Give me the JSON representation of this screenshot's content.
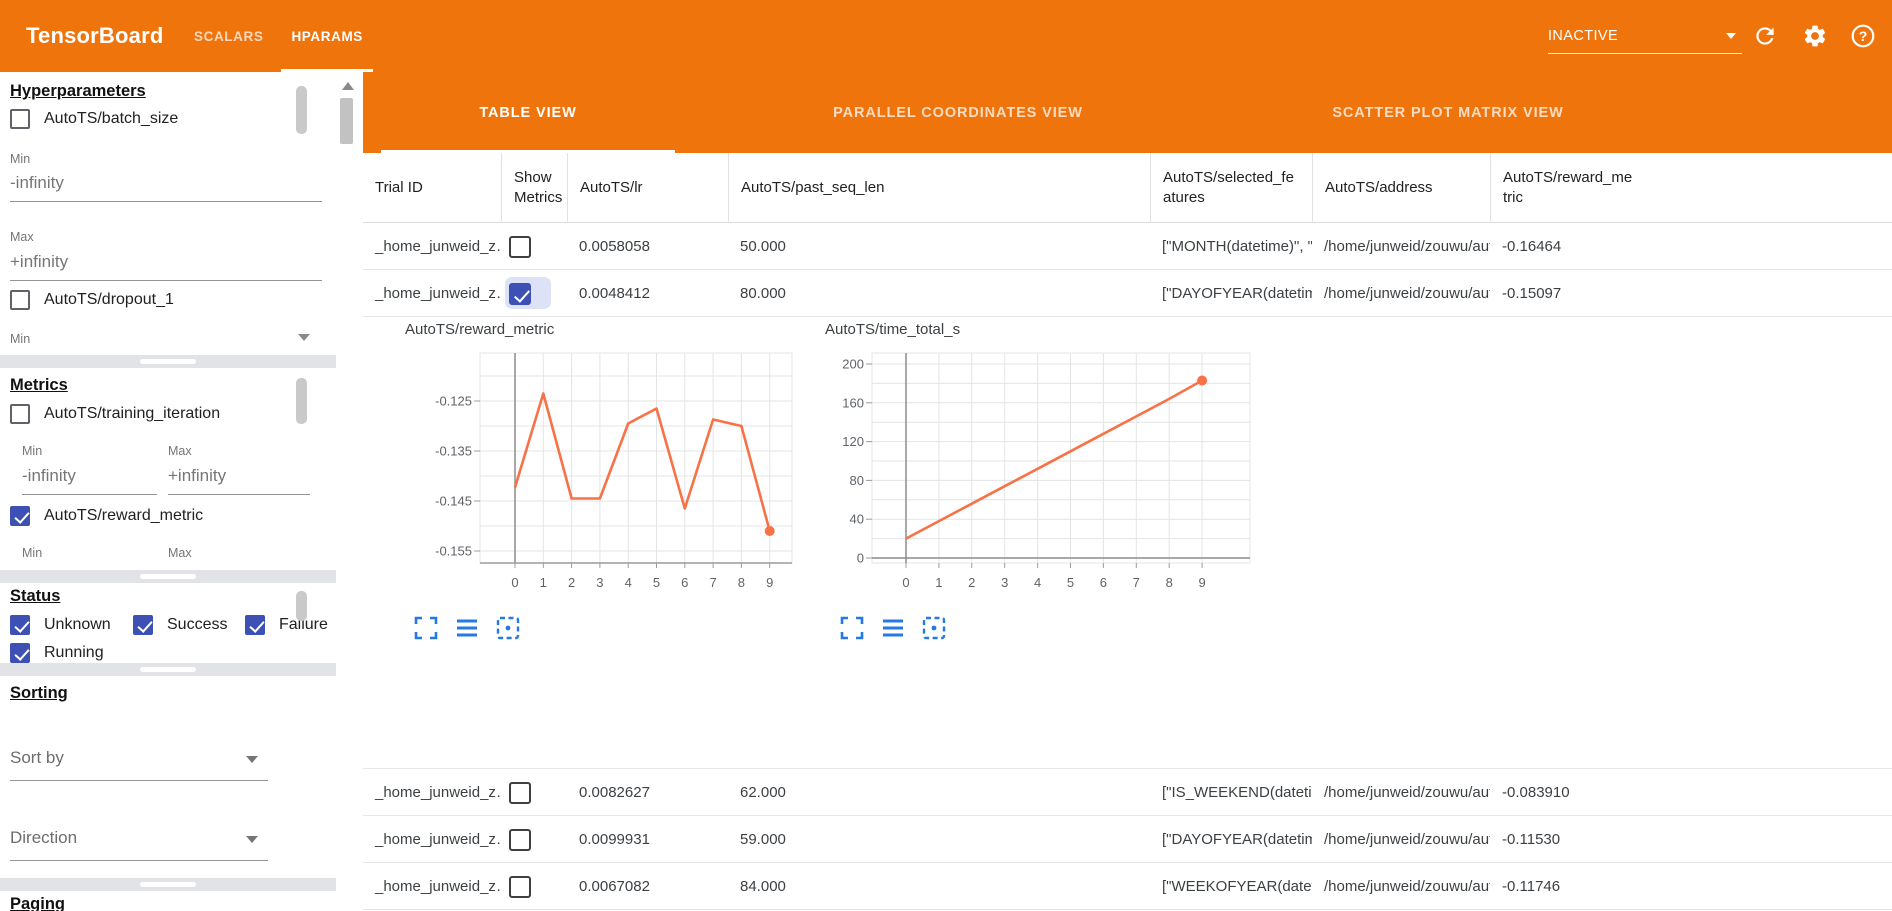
{
  "header": {
    "app_title": "TensorBoard",
    "nav_tabs": [
      {
        "label": "SCALARS",
        "active": false
      },
      {
        "label": "HPARAMS",
        "active": true
      }
    ],
    "run_selector_value": "INACTIVE"
  },
  "sidebar": {
    "hyperparameters": {
      "heading": "Hyperparameters",
      "batch_size": {
        "label": "AutoTS/batch_size",
        "checked": false
      },
      "min_label": "Min",
      "min_value": "-infinity",
      "max_label": "Max",
      "max_value": "+infinity",
      "dropout": {
        "label": "AutoTS/dropout_1",
        "checked": false
      },
      "dropout_min_label": "Min"
    },
    "metrics": {
      "heading": "Metrics",
      "training_iteration": {
        "label": "AutoTS/training_iteration",
        "checked": false
      },
      "min_label": "Min",
      "min_value": "-infinity",
      "max_label": "Max",
      "max_value": "+infinity",
      "reward_metric": {
        "label": "AutoTS/reward_metric",
        "checked": true
      },
      "reward_min_label": "Min",
      "reward_max_label": "Max"
    },
    "status": {
      "heading": "Status",
      "options": [
        {
          "label": "Unknown",
          "checked": true
        },
        {
          "label": "Success",
          "checked": true
        },
        {
          "label": "Failure",
          "checked": true
        },
        {
          "label": "Running",
          "checked": true
        }
      ]
    },
    "sorting": {
      "heading": "Sorting",
      "sort_by_placeholder": "Sort by",
      "direction_placeholder": "Direction"
    },
    "paging": {
      "heading": "Paging"
    }
  },
  "main": {
    "view_tabs": [
      {
        "label": "TABLE VIEW",
        "active": true
      },
      {
        "label": "PARALLEL COORDINATES VIEW",
        "active": false
      },
      {
        "label": "SCATTER PLOT MATRIX VIEW",
        "active": false
      }
    ],
    "table": {
      "columns": [
        "Trial ID",
        "Show Metrics",
        "AutoTS/lr",
        "AutoTS/past_seq_len",
        "AutoTS/selected_features",
        "AutoTS/address",
        "AutoTS/reward_metric"
      ],
      "rows": [
        {
          "trial_id": "_home_junweid_z…",
          "show_metrics": false,
          "lr": "0.0058058",
          "past_seq_len": "50.000",
          "selected_features": "[\"MONTH(datetime)\", \"I…",
          "address": "/home/junweid/zouwu/aut…",
          "reward_metric": "-0.16464"
        },
        {
          "trial_id": "_home_junweid_z…",
          "show_metrics": true,
          "lr": "0.0048412",
          "past_seq_len": "80.000",
          "selected_features": "[\"DAYOFYEAR(datetime…",
          "address": "/home/junweid/zouwu/aut…",
          "reward_metric": "-0.15097"
        },
        {
          "trial_id": "_home_junweid_z…",
          "show_metrics": false,
          "lr": "0.0082627",
          "past_seq_len": "62.000",
          "selected_features": "[\"IS_WEEKEND(datetim…",
          "address": "/home/junweid/zouwu/aut…",
          "reward_metric": "-0.083910"
        },
        {
          "trial_id": "_home_junweid_z…",
          "show_metrics": false,
          "lr": "0.0099931",
          "past_seq_len": "59.000",
          "selected_features": "[\"DAYOFYEAR(datetime…",
          "address": "/home/junweid/zouwu/aut…",
          "reward_metric": "-0.11530"
        },
        {
          "trial_id": "_home_junweid_z…",
          "show_metrics": false,
          "lr": "0.0067082",
          "past_seq_len": "84.000",
          "selected_features": "[\"WEEKOFYEAR(dateti…",
          "address": "/home/junweid/zouwu/aut…",
          "reward_metric": "-0.11746"
        }
      ]
    }
  },
  "chart_data": [
    {
      "type": "line",
      "title": "AutoTS/reward_metric",
      "x": [
        0,
        1,
        2,
        3,
        4,
        5,
        6,
        7,
        8,
        9
      ],
      "values": [
        -0.1423,
        -0.1235,
        -0.1445,
        -0.1445,
        -0.1295,
        -0.1265,
        -0.1465,
        -0.1287,
        -0.13,
        -0.151
      ],
      "xticks": [
        "0",
        "1",
        "2",
        "3",
        "4",
        "5",
        "6",
        "7",
        "8",
        "9"
      ],
      "ytick_values": [
        -0.125,
        -0.135,
        -0.145,
        -0.155
      ],
      "ytick_labels": [
        "-0.125",
        "-0.135",
        "-0.145",
        "-0.155"
      ],
      "ylim": [
        -0.1574,
        -0.1154
      ],
      "xlabel": "",
      "ylabel": "",
      "grid": true,
      "legend": "none",
      "line_color": "#f87247",
      "last_point_marker": true
    },
    {
      "type": "line",
      "title": "AutoTS/time_total_s",
      "x": [
        0,
        1,
        2,
        3,
        4,
        5,
        6,
        7,
        8,
        9
      ],
      "values": [
        20,
        38,
        56,
        74,
        92,
        110,
        128,
        146,
        164,
        183
      ],
      "xticks": [
        "0",
        "1",
        "2",
        "3",
        "4",
        "5",
        "6",
        "7",
        "8",
        "9"
      ],
      "ytick_values": [
        200,
        160,
        120,
        80,
        40,
        0
      ],
      "ytick_labels": [
        "200",
        "160",
        "120",
        "80",
        "40",
        "0"
      ],
      "ylim": [
        -6,
        211
      ],
      "xlabel": "",
      "ylabel": "",
      "grid": true,
      "legend": "none",
      "line_color": "#f87247",
      "last_point_marker": true
    }
  ],
  "colors": {
    "header_orange": "#f0740c",
    "checkbox_indigo": "#3d51b5",
    "chart_line_orange": "#f87247",
    "chart_icon_blue": "#2479e4"
  }
}
